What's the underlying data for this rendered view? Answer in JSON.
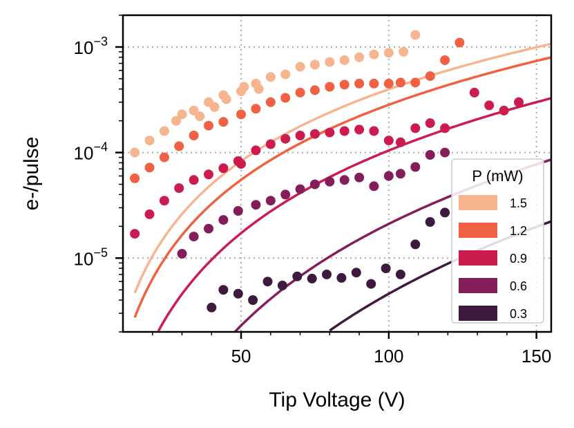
{
  "chart_data": {
    "type": "scatter",
    "title": "",
    "xlabel": "Tip Voltage (V)",
    "ylabel": "e-/pulse",
    "xlim": [
      10,
      155
    ],
    "ylim": [
      2e-06,
      0.002
    ],
    "yscale": "log",
    "grid": true,
    "xticks": [
      50,
      100,
      150
    ],
    "xtick_labels": [
      "50",
      "100",
      "150"
    ],
    "yticks_major": [
      1e-05,
      0.0001,
      0.001
    ],
    "ytick_labels": [
      "10",
      "10",
      "10"
    ],
    "ytick_exponents": [
      "−5",
      "−4",
      "−3"
    ],
    "legend": {
      "title": "P (mW)",
      "position": "lower-right"
    },
    "series": [
      {
        "name": "1.5",
        "color": "#f6b48f",
        "fit": {
          "a": 1.2e-08,
          "b": 2.26
        },
        "points": [
          [
            14,
            0.0001
          ],
          [
            19,
            0.00013
          ],
          [
            24,
            0.00016
          ],
          [
            28,
            0.0002
          ],
          [
            30,
            0.00023
          ],
          [
            34,
            0.00025
          ],
          [
            36,
            0.00022
          ],
          [
            39,
            0.0003
          ],
          [
            41,
            0.00027
          ],
          [
            44,
            0.00035
          ],
          [
            45,
            0.00032
          ],
          [
            50,
            0.00038
          ],
          [
            51,
            0.00042
          ],
          [
            55,
            0.00045
          ],
          [
            56,
            0.0004
          ],
          [
            60,
            0.00052
          ],
          [
            65,
            0.00055
          ],
          [
            70,
            0.00065
          ],
          [
            75,
            0.00068
          ],
          [
            80,
            0.00072
          ],
          [
            85,
            0.00075
          ],
          [
            90,
            0.0008
          ],
          [
            95,
            0.00085
          ],
          [
            100,
            0.00088
          ],
          [
            105,
            0.0009
          ],
          [
            109,
            0.0013
          ]
        ]
      },
      {
        "name": "1.2",
        "color": "#f06043",
        "fit": {
          "a": 5.4e-09,
          "b": 2.36
        },
        "points": [
          [
            14,
            5.7e-05
          ],
          [
            19,
            7.2e-05
          ],
          [
            24,
            9e-05
          ],
          [
            29,
            0.000115
          ],
          [
            34,
            0.000145
          ],
          [
            39,
            0.00018
          ],
          [
            44,
            0.000195
          ],
          [
            50,
            0.00023
          ],
          [
            55,
            0.00026
          ],
          [
            60,
            0.0003
          ],
          [
            65,
            0.00033
          ],
          [
            70,
            0.00037
          ],
          [
            75,
            0.00039
          ],
          [
            80,
            0.00042
          ],
          [
            85,
            0.00044
          ],
          [
            90,
            0.00045
          ],
          [
            95,
            0.00045
          ],
          [
            100,
            0.00045
          ],
          [
            104,
            0.00046
          ],
          [
            109,
            0.00046
          ],
          [
            114,
            0.00053
          ],
          [
            119,
            0.00075
          ],
          [
            124,
            0.0011
          ]
        ]
      },
      {
        "name": "0.9",
        "color": "#cb1b4f",
        "fit": {
          "a": 6.6e-10,
          "b": 2.6
        },
        "points": [
          [
            14,
            1.7e-05
          ],
          [
            19,
            2.6e-05
          ],
          [
            24,
            3.5e-05
          ],
          [
            29,
            4.6e-05
          ],
          [
            34,
            5.5e-05
          ],
          [
            39,
            6.2e-05
          ],
          [
            44,
            7.1e-05
          ],
          [
            49,
            8.3e-05
          ],
          [
            50,
            7.8e-05
          ],
          [
            55,
            0.000105
          ],
          [
            60,
            0.00012
          ],
          [
            65,
            0.000135
          ],
          [
            70,
            0.000145
          ],
          [
            75,
            0.00015
          ],
          [
            80,
            0.000155
          ],
          [
            85,
            0.00016
          ],
          [
            90,
            0.000165
          ],
          [
            95,
            0.00016
          ],
          [
            100,
            0.00013
          ],
          [
            104,
            0.000125
          ],
          [
            109,
            0.00017
          ],
          [
            114,
            0.00019
          ],
          [
            119,
            0.00017
          ],
          [
            129,
            0.00037
          ],
          [
            134,
            0.00028
          ],
          [
            139,
            0.00025
          ],
          [
            144,
            0.0003
          ]
        ]
      },
      {
        "name": "0.6",
        "color": "#841e5a",
        "fit": {
          "a": 8.4e-12,
          "b": 3.2
        },
        "points": [
          [
            30,
            1.1e-05
          ],
          [
            34,
            1.6e-05
          ],
          [
            39,
            1.9e-05
          ],
          [
            44,
            2.3e-05
          ],
          [
            49,
            2.8e-05
          ],
          [
            55,
            3.2e-05
          ],
          [
            60,
            3.5e-05
          ],
          [
            65,
            4e-05
          ],
          [
            70,
            4.5e-05
          ],
          [
            75,
            5e-05
          ],
          [
            80,
            5.3e-05
          ],
          [
            85,
            5.5e-05
          ],
          [
            90,
            5.8e-05
          ],
          [
            95,
            4.8e-05
          ],
          [
            100,
            6e-05
          ],
          [
            104,
            6.3e-05
          ],
          [
            109,
            7.3e-05
          ],
          [
            114,
            9.5e-05
          ],
          [
            119,
            0.0001
          ]
        ]
      },
      {
        "name": "0.3",
        "color": "#3e1a3f",
        "fit": {
          "a": 2.9e-13,
          "b": 3.6
        },
        "points": [
          [
            40,
            3.4e-06
          ],
          [
            44,
            5e-06
          ],
          [
            49,
            4.6e-06
          ],
          [
            54,
            4e-06
          ],
          [
            59,
            6e-06
          ],
          [
            64,
            5.5e-06
          ],
          [
            69,
            6.7e-06
          ],
          [
            74,
            6.4e-06
          ],
          [
            79,
            7e-06
          ],
          [
            84,
            6.5e-06
          ],
          [
            89,
            7.3e-06
          ],
          [
            94,
            5.7e-06
          ],
          [
            99,
            8e-06
          ],
          [
            104,
            7e-06
          ],
          [
            109,
            1.35e-05
          ],
          [
            114,
            2.2e-05
          ],
          [
            119,
            2.7e-05
          ]
        ]
      }
    ]
  }
}
